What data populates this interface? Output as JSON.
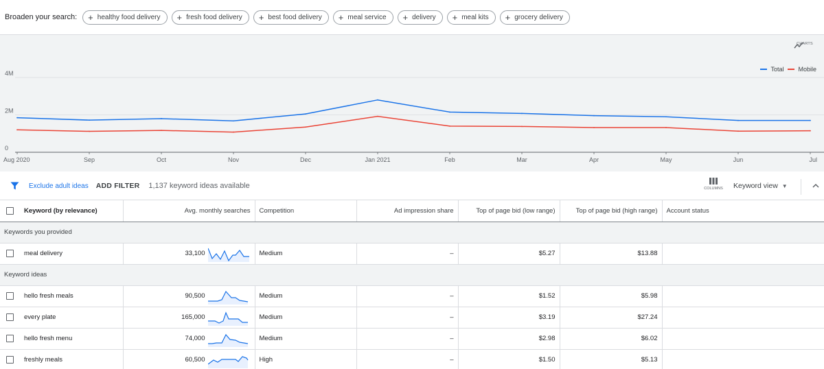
{
  "broaden": {
    "label": "Broaden your search:",
    "chips": [
      "healthy food delivery",
      "fresh food delivery",
      "best food delivery",
      "meal service",
      "delivery",
      "meal kits",
      "grocery delivery"
    ]
  },
  "chart_data": {
    "type": "line",
    "x": [
      "Aug 2020",
      "Sep",
      "Oct",
      "Nov",
      "Dec",
      "Jan 2021",
      "Feb",
      "Mar",
      "Apr",
      "May",
      "Jun",
      "Jul"
    ],
    "y_ticks": [
      "0",
      "2M",
      "4M"
    ],
    "ylim": [
      0,
      4000000
    ],
    "series": [
      {
        "name": "Total",
        "color": "#1a73e8",
        "values": [
          1850000,
          1720000,
          1800000,
          1680000,
          2050000,
          2800000,
          2150000,
          2080000,
          1960000,
          1900000,
          1700000,
          1700000
        ]
      },
      {
        "name": "Mobile",
        "color": "#ea4335",
        "values": [
          1200000,
          1120000,
          1170000,
          1080000,
          1350000,
          1920000,
          1400000,
          1380000,
          1320000,
          1320000,
          1130000,
          1150000
        ]
      }
    ],
    "legend": "top-right",
    "grid": true
  },
  "charts_button": {
    "label": "CHARTS",
    "icon": "trend-icon"
  },
  "filter_bar": {
    "exclude_link": "Exclude adult ideas",
    "add_filter": "ADD FILTER",
    "count": "1,137 keyword ideas available",
    "columns_label": "COLUMNS",
    "view_label": "Keyword view"
  },
  "table": {
    "headers": [
      "Keyword (by relevance)",
      "Avg. monthly searches",
      "Competition",
      "Ad impression share",
      "Top of page bid (low range)",
      "Top of page bid (high range)",
      "Account status"
    ],
    "group_provided": "Keywords you provided",
    "provided": [
      {
        "keyword": "meal delivery",
        "searches": "33,100",
        "competition": "Medium",
        "impression": "–",
        "low": "$5.27",
        "high": "$13.88",
        "status": ""
      }
    ],
    "group_ideas": "Keyword ideas",
    "ideas": [
      {
        "keyword": "hello fresh meals",
        "searches": "90,500",
        "competition": "Medium",
        "impression": "–",
        "low": "$1.52",
        "high": "$5.98",
        "status": ""
      },
      {
        "keyword": "every plate",
        "searches": "165,000",
        "competition": "Medium",
        "impression": "–",
        "low": "$3.19",
        "high": "$27.24",
        "status": ""
      },
      {
        "keyword": "hello fresh menu",
        "searches": "74,000",
        "competition": "Medium",
        "impression": "–",
        "low": "$2.98",
        "high": "$6.02",
        "status": ""
      },
      {
        "keyword": "freshly meals",
        "searches": "60,500",
        "competition": "High",
        "impression": "–",
        "low": "$1.50",
        "high": "$5.13",
        "status": ""
      }
    ]
  }
}
